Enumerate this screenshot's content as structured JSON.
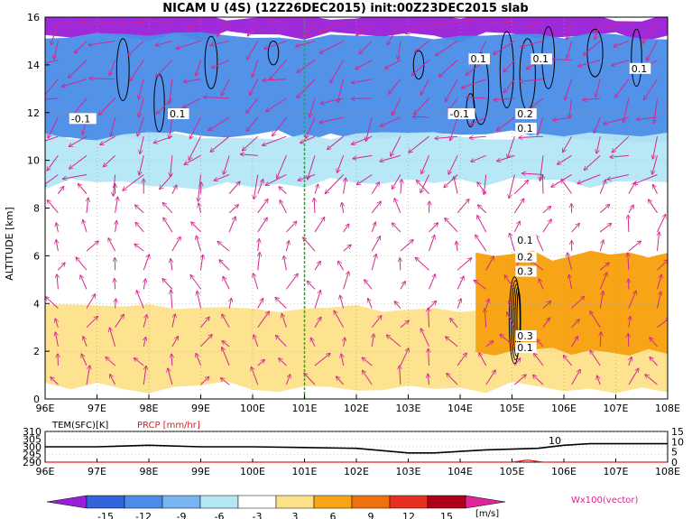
{
  "chart_data": [
    {
      "type": "heatmap",
      "title": "NICAM U (4S) (12Z26DEC2015) init:00Z23DEC2015 slab",
      "xlabel": "",
      "ylabel": "ALTITUDE [km]",
      "x_ticks": [
        "96E",
        "97E",
        "98E",
        "99E",
        "100E",
        "101E",
        "102E",
        "103E",
        "104E",
        "105E",
        "106E",
        "107E",
        "108E"
      ],
      "y_ticks": [
        "0",
        "2",
        "4",
        "6",
        "8",
        "10",
        "12",
        "14",
        "16"
      ],
      "xlim": [
        96,
        108
      ],
      "ylim": [
        0,
        16
      ],
      "marker_longitude": 101,
      "colorbar": {
        "ticks": [
          "-15",
          "-12",
          "-9",
          "-6",
          "-3",
          "3",
          "6",
          "9",
          "12",
          "15"
        ],
        "unit": "[m/s]",
        "colors": [
          "#9a1fd8",
          "#3264dc",
          "#4a8ce8",
          "#78b4f0",
          "#b4e6f4",
          "#ffffff",
          "#fde08a",
          "#f7a416",
          "#f07010",
          "#e83020",
          "#b00018",
          "#e0249a"
        ]
      },
      "vector_label": "Wx100(vector)",
      "vector_color": "#d4268e",
      "contour_labels": [
        "-0.1",
        "0.1",
        "0.1",
        "0.1",
        "0.1",
        "-0.1",
        "0.2",
        "0.1",
        "0.1",
        "0.2",
        "0.3",
        "0.3",
        "0.1"
      ],
      "regions": [
        {
          "kind": "band",
          "name": "upper-purple",
          "value": -15,
          "alt": [
            15.2,
            16
          ]
        },
        {
          "kind": "band",
          "name": "upper-blue",
          "value": -9,
          "alt": [
            11,
            15.2
          ]
        },
        {
          "kind": "band",
          "name": "mid-lightblue",
          "value": -3,
          "alt": [
            9,
            11
          ]
        },
        {
          "kind": "band",
          "name": "lower-yellow",
          "value": 3,
          "alt": [
            0.5,
            3.8
          ]
        },
        {
          "kind": "patch",
          "name": "east-orange",
          "value": 6,
          "lon": [
            104.3,
            108
          ],
          "alt": [
            2,
            6
          ]
        }
      ]
    },
    {
      "type": "line",
      "title": "",
      "series": [
        {
          "name": "TEM(SFC)[K]",
          "color": "#000000",
          "x": [
            96,
            97,
            98,
            99,
            100,
            101,
            102,
            103,
            103.5,
            104,
            104.5,
            105,
            105.5,
            106,
            106.5,
            107,
            108
          ],
          "values": [
            300,
            300,
            301,
            300,
            300,
            299.5,
            299,
            296,
            296,
            297,
            298,
            298.5,
            299,
            301,
            302,
            302,
            302
          ]
        },
        {
          "name": "PRCP [mm/hr]",
          "color": "#e02020",
          "x": [
            96,
            104.5,
            105,
            105.3,
            105.6,
            106,
            108
          ],
          "values": [
            0,
            0,
            0,
            1,
            0,
            0,
            0
          ]
        }
      ],
      "left_ticks": [
        "290",
        "295",
        "300",
        "305",
        "310"
      ],
      "right_ticks": [
        "0",
        "5",
        "10",
        "15"
      ],
      "x_ticks": [
        "96E",
        "97E",
        "98E",
        "99E",
        "100E",
        "101E",
        "102E",
        "103E",
        "104E",
        "105E",
        "106E",
        "107E",
        "108E"
      ],
      "ylim_left": [
        290,
        310
      ],
      "ylim_right": [
        0,
        15
      ],
      "annotation": "10"
    }
  ]
}
